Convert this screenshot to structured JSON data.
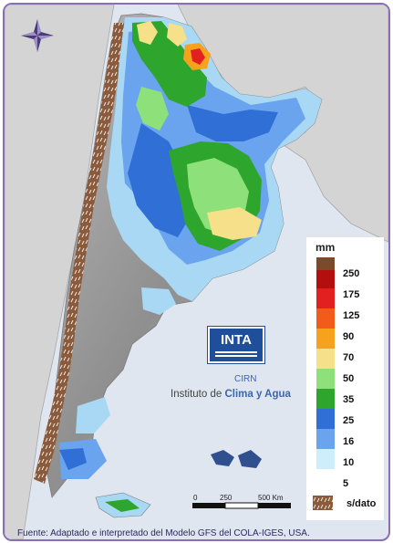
{
  "legend": {
    "title": "mm",
    "classes": [
      {
        "label": "250",
        "color": "#7a4a2a"
      },
      {
        "label": "175",
        "color": "#b30f0f"
      },
      {
        "label": "125",
        "color": "#e32020"
      },
      {
        "label": "90",
        "color": "#f25c1a"
      },
      {
        "label": "70",
        "color": "#f7a21c"
      },
      {
        "label": "50",
        "color": "#f7e08a"
      },
      {
        "label": "35",
        "color": "#8ee07a"
      },
      {
        "label": "25",
        "color": "#2ea62e"
      },
      {
        "label": "16",
        "color": "#2f6fd6"
      },
      {
        "label": "10",
        "color": "#6aa4ee"
      },
      {
        "label": "5",
        "color": "#cfeefb"
      }
    ],
    "no_data_label": "s/dato",
    "no_data_color": "#8a5a3c"
  },
  "logo": {
    "name": "INTA",
    "sub": "CIRN",
    "institute_prefix": "Instituto de ",
    "institute_highlight": "Clima y Agua"
  },
  "scale_bar": {
    "labels": [
      "0",
      "250",
      "500 Km"
    ]
  },
  "source": "Fuente: Adaptado e interpretado del Modelo GFS del COLA-IGES, USA.",
  "icons": {
    "compass": "compass-rose-icon",
    "nodata": "hatched-swatch-icon"
  }
}
